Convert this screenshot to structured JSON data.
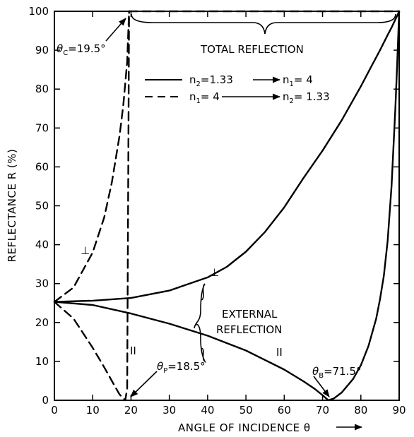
{
  "chart_data": {
    "type": "line",
    "xlabel": "ANGLE OF INCIDENCE θ",
    "ylabel": "REFLECTANCE R (%)",
    "xlim": [
      0,
      90
    ],
    "ylim": [
      0,
      100
    ],
    "x_ticks": [
      0,
      10,
      20,
      30,
      40,
      50,
      60,
      70,
      80,
      90
    ],
    "y_ticks": [
      0,
      10,
      20,
      30,
      40,
      50,
      60,
      70,
      80,
      90,
      100
    ],
    "grid": false,
    "legend_position": "top-center",
    "legend": [
      {
        "n_a": "n",
        "sub_a": "2",
        "val_a": "=1.33",
        "n_b": "n",
        "sub_b": "1",
        "val_b": "= 4",
        "style": "solid"
      },
      {
        "n_a": "n",
        "sub_a": "1",
        "val_a": "= 4",
        "n_b": "n",
        "sub_b": "2",
        "val_b": "= 1.33",
        "style": "dashed"
      }
    ],
    "series": [
      {
        "id": "ext-perp",
        "style": "solid",
        "x": [
          0,
          10,
          20,
          30,
          40,
          45,
          50,
          55,
          60,
          65,
          70,
          75,
          80,
          83,
          85,
          87,
          88,
          89,
          89.5,
          90
        ],
        "y": [
          25.3,
          25.6,
          26.3,
          28.2,
          31.6,
          34.3,
          38.2,
          43.3,
          49.6,
          57.1,
          64.2,
          72.0,
          80.7,
          86.3,
          90.0,
          93.9,
          95.8,
          97.9,
          98.9,
          100
        ]
      },
      {
        "id": "ext-par",
        "style": "solid",
        "x": [
          0,
          10,
          20,
          30,
          40,
          50,
          60,
          65,
          68,
          70,
          71.5,
          73,
          75,
          78,
          80,
          82,
          84,
          85,
          86,
          87,
          88,
          89,
          89.5,
          90
        ],
        "y": [
          25.3,
          24.5,
          22.3,
          19.7,
          16.6,
          12.8,
          7.9,
          4.9,
          2.9,
          1.3,
          0,
          0.5,
          2.0,
          5.5,
          9.0,
          14.0,
          21.0,
          26.0,
          32.0,
          41.0,
          55.0,
          75.0,
          87.0,
          100
        ]
      },
      {
        "id": "int-perp",
        "style": "dashed",
        "x": [
          0,
          5,
          10,
          13,
          15,
          17,
          18,
          19,
          19.5
        ],
        "y": [
          25.3,
          29.0,
          38.0,
          47.0,
          56.0,
          68.0,
          76.0,
          87.0,
          100
        ]
      },
      {
        "id": "int-par",
        "style": "dashed",
        "x": [
          0,
          5,
          10,
          13,
          15,
          17,
          18.5,
          19,
          19.5
        ],
        "y": [
          25.3,
          21.0,
          13.5,
          8.5,
          5.0,
          1.5,
          0,
          3.0,
          100
        ]
      },
      {
        "id": "int-total",
        "style": "dashed",
        "x": [
          19.5,
          90
        ],
        "y": [
          100,
          100
        ]
      }
    ],
    "annotations": {
      "theta_c": {
        "sym": "θ",
        "sub": "C",
        "val": "=19.5°"
      },
      "theta_p": {
        "sym": "θ",
        "sub": "P",
        "val": "=18.5°"
      },
      "theta_b": {
        "sym": "θ",
        "sub": "B",
        "val": "=71.5°"
      },
      "total_reflection": "TOTAL REFLECTION",
      "external_reflection_1": "EXTERNAL",
      "external_reflection_2": "REFLECTION",
      "perp_symbol": "⊥",
      "par_symbol": "II"
    }
  }
}
